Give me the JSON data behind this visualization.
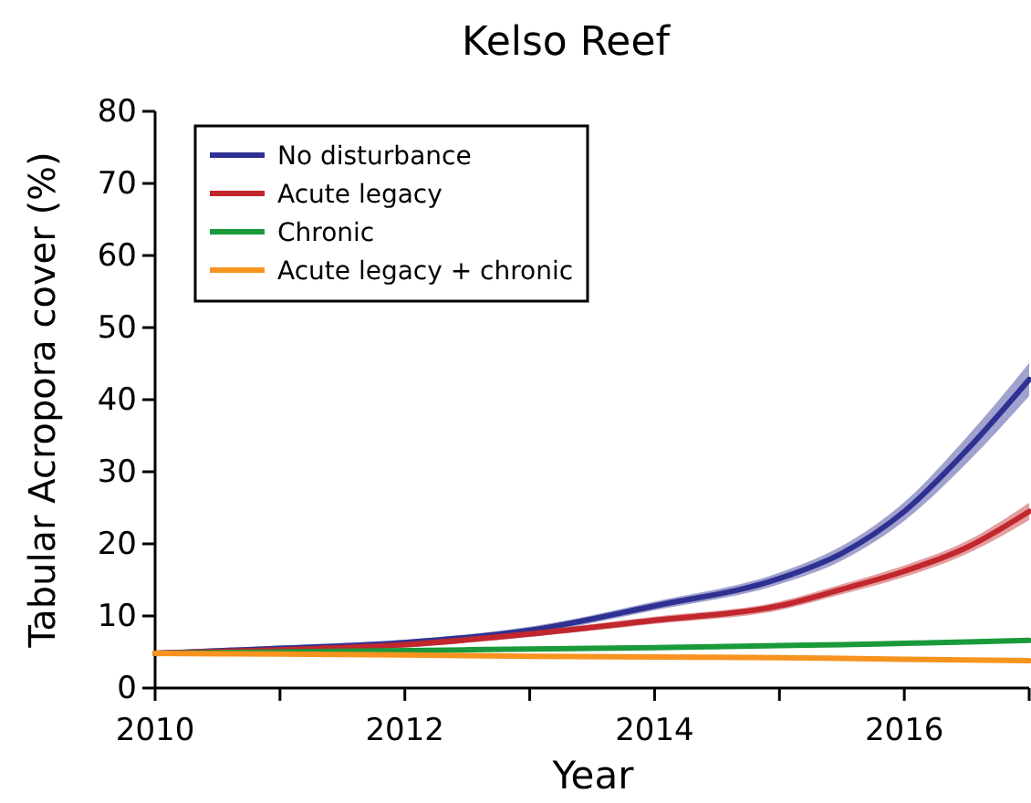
{
  "chart_data": {
    "type": "line",
    "title": "Kelso Reef",
    "xlabel": "Year",
    "ylabel": "Tabular Acropora cover (%)",
    "x": [
      2010,
      2011,
      2012,
      2013,
      2014,
      2015,
      2015.5,
      2016,
      2016.5,
      2017
    ],
    "series": [
      {
        "name": "No disturbance",
        "color": "#2e3192",
        "values": [
          4.8,
          5.5,
          6.3,
          8,
          11.4,
          15.2,
          18.7,
          24.5,
          33,
          42.8
        ],
        "lower": [
          4.4,
          5.1,
          5.9,
          7.5,
          10.8,
          14.4,
          17.7,
          23.2,
          31.2,
          40.5
        ],
        "upper": [
          5.2,
          5.9,
          6.7,
          8.5,
          12,
          16,
          19.7,
          25.8,
          34.8,
          45.1
        ]
      },
      {
        "name": "Acute legacy",
        "color": "#c1272d",
        "values": [
          4.8,
          5.3,
          6,
          7.5,
          9.4,
          11.4,
          13.7,
          16.2,
          19.5,
          24.5
        ],
        "lower": [
          4.4,
          4.9,
          5.6,
          7.1,
          8.9,
          10.8,
          13,
          15.4,
          18.6,
          23.3
        ],
        "upper": [
          5.2,
          5.7,
          6.4,
          7.9,
          9.9,
          12,
          14.4,
          17,
          20.4,
          25.7
        ]
      },
      {
        "name": "Chronic",
        "color": "#1a9a3a",
        "values": [
          4.8,
          5,
          5.2,
          5.4,
          5.6,
          5.9,
          6,
          6.2,
          6.4,
          6.6
        ]
      },
      {
        "name": "Acute legacy + chronic",
        "color": "#f7931e",
        "values": [
          4.8,
          4.7,
          4.6,
          4.4,
          4.3,
          4.2,
          4.1,
          4,
          3.9,
          3.8
        ]
      }
    ],
    "xlim": [
      2010,
      2017
    ],
    "xticks": [
      2010,
      {
        "value": 2011,
        "label": null
      },
      2012,
      {
        "value": 2013,
        "label": null
      },
      2014,
      {
        "value": 2015,
        "label": null
      },
      2016,
      {
        "value": 2017,
        "label": null
      }
    ],
    "ylim": [
      0,
      80
    ],
    "yticks": [
      0,
      10,
      20,
      30,
      40,
      50,
      60,
      70,
      80
    ],
    "grid": false,
    "legend": "top left",
    "marker": "none",
    "line_style": "solid"
  }
}
